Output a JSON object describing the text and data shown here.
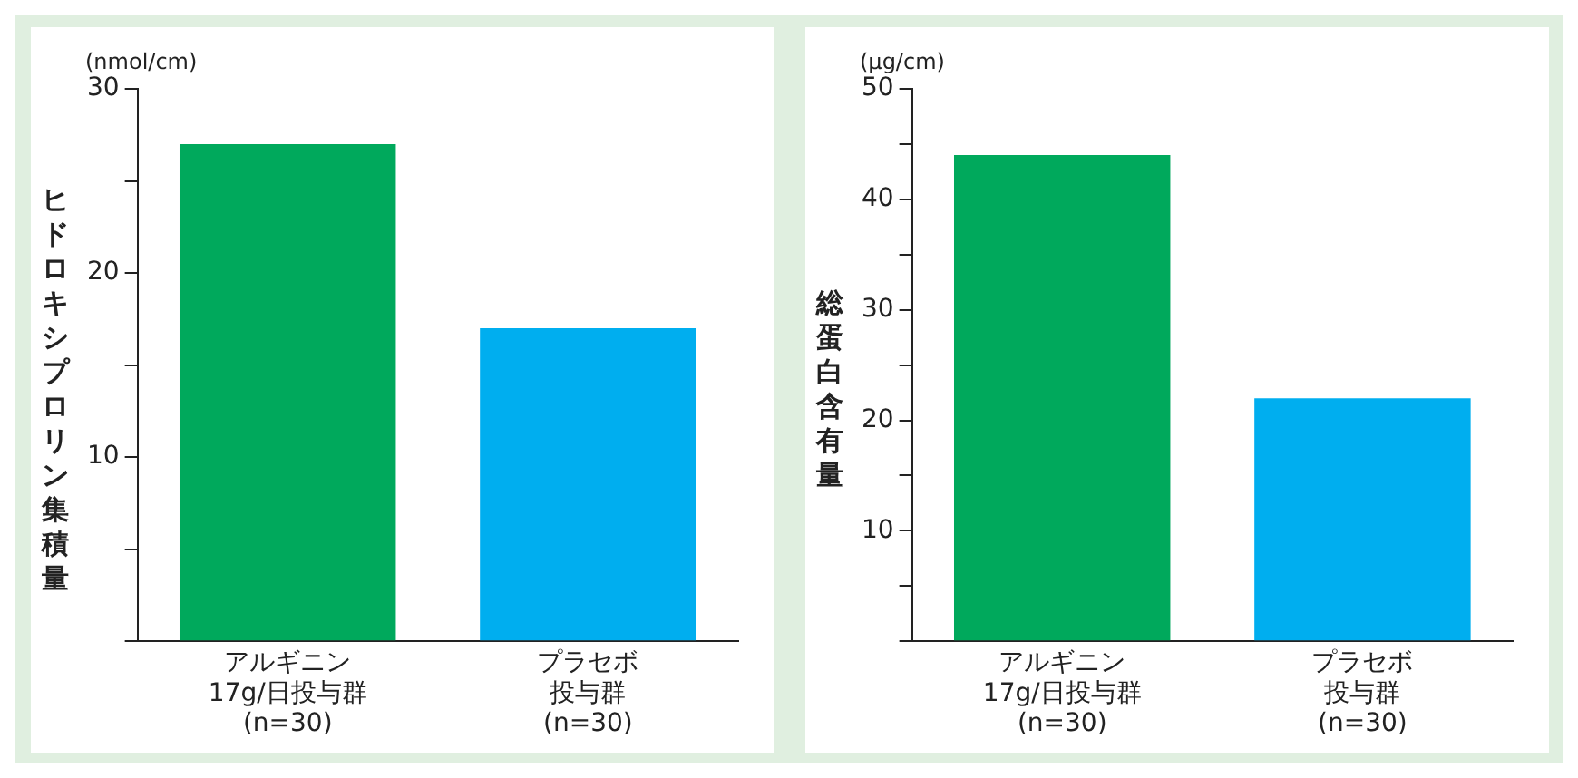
{
  "chart_data": [
    {
      "type": "bar",
      "ylabel": "ヒドロキシプロリン集積量",
      "annotations": [
        "(nmol/cm)"
      ],
      "categories": [
        "アルギニン17g/日投与群(n=30)",
        "プラセボ投与群(n=30)"
      ],
      "values": [
        27,
        17
      ],
      "colors": [
        "#00a95c",
        "#00aeef"
      ],
      "ylim": [
        0,
        30
      ],
      "yticks": [
        {
          "value": 0,
          "label": null
        },
        {
          "value": 5,
          "label": null
        },
        10,
        {
          "value": 15,
          "label": null
        },
        20,
        {
          "value": 25,
          "label": null
        },
        30
      ],
      "grid": false,
      "legend": false
    },
    {
      "type": "bar",
      "ylabel": "総蛋白含有量",
      "annotations": [
        "(μg/cm)"
      ],
      "categories": [
        "アルギニン17g/日投与群(n=30)",
        "プラセボ投与群(n=30)"
      ],
      "values": [
        44,
        22
      ],
      "colors": [
        "#00a95c",
        "#00aeef"
      ],
      "ylim": [
        0,
        50
      ],
      "yticks": [
        {
          "value": 0,
          "label": null
        },
        {
          "value": 5,
          "label": null
        },
        10,
        {
          "value": 15,
          "label": null
        },
        20,
        {
          "value": 25,
          "label": null
        },
        30,
        {
          "value": 35,
          "label": null
        },
        40,
        {
          "value": 45,
          "label": null
        },
        50
      ],
      "grid": false,
      "legend": false
    }
  ]
}
